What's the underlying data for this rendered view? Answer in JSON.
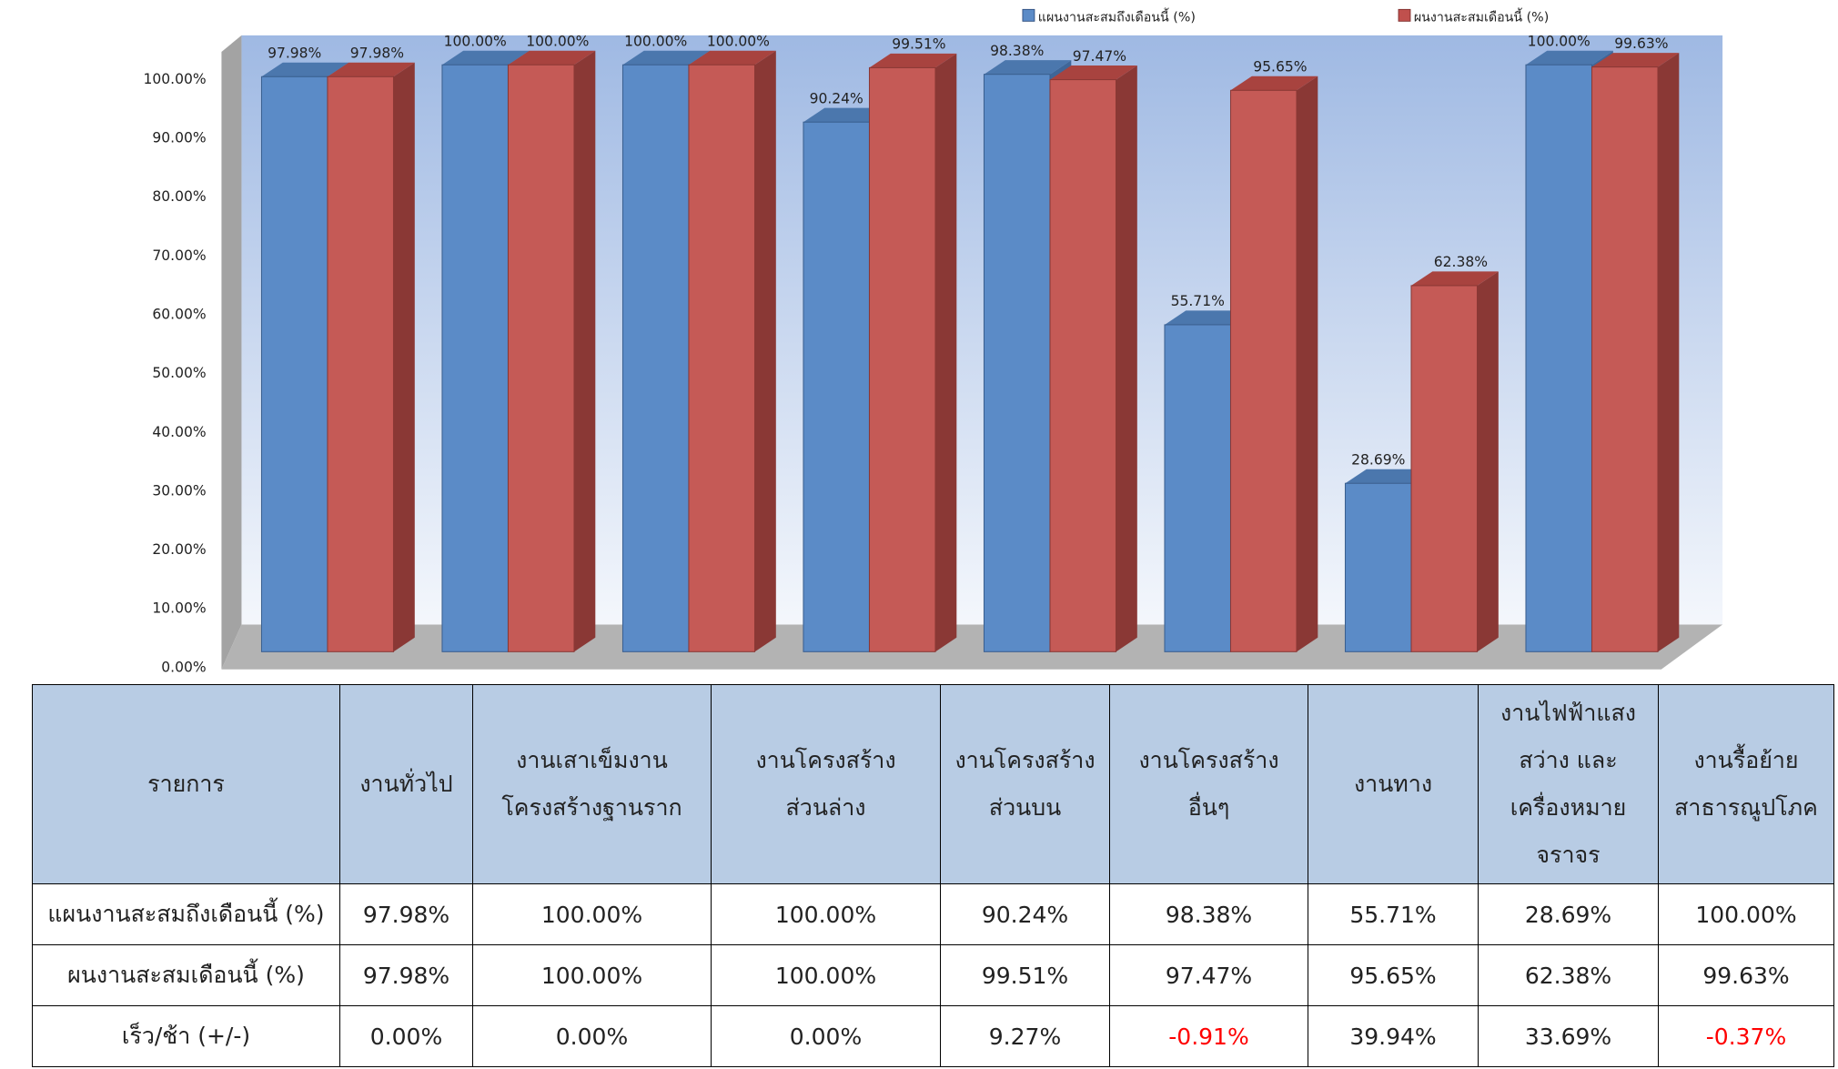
{
  "chart_data": {
    "type": "bar",
    "title": "",
    "xlabel": "",
    "ylabel": "",
    "ylim": [
      0,
      100
    ],
    "y_ticks": [
      "0.00%",
      "10.00%",
      "20.00%",
      "30.00%",
      "40.00%",
      "50.00%",
      "60.00%",
      "70.00%",
      "80.00%",
      "90.00%",
      "100.00%"
    ],
    "grid": false,
    "legend_position": "top",
    "categories": [
      "งานทั่วไป",
      "งานเสาเข็มงานโครงสร้างฐานราก",
      "งานโครงสร้างส่วนล่าง",
      "งานโครงสร้างส่วนบน",
      "งานโครงสร้างอื่นๆ",
      "งานทาง",
      "งานไฟฟ้าแสงสว่าง และเครื่องหมายจราจร",
      "งานรื้อย้ายสาธารณูปโภค"
    ],
    "series": [
      {
        "name": "แผนงานสะสมถึงเดือนนี้ (%)",
        "color": "#5B8BC7",
        "values": [
          97.98,
          100.0,
          100.0,
          90.24,
          98.38,
          55.71,
          28.69,
          100.0
        ],
        "labels": [
          "97.98%",
          "100.00%",
          "100.00%",
          "90.24%",
          "98.38%",
          "55.71%",
          "28.69%",
          "100.00%"
        ]
      },
      {
        "name": "ผนงานสะสมเดือนนี้ (%)",
        "color": "#C0504D",
        "values": [
          97.98,
          100.0,
          100.0,
          99.51,
          97.47,
          95.65,
          62.38,
          99.63
        ],
        "labels": [
          "97.98%",
          "100.00%",
          "100.00%",
          "99.51%",
          "97.47%",
          "95.65%",
          "62.38%",
          "99.63%"
        ]
      }
    ]
  },
  "table": {
    "header": [
      "รายการ",
      "งานทั่วไป",
      "งานเสาเข็มงาน\nโครงสร้างฐานราก",
      "งานโครงสร้าง\nส่วนล่าง",
      "งานโครงสร้าง\nส่วนบน",
      "งานโครงสร้าง\nอื่นๆ",
      "งานทาง",
      "งานไฟฟ้าแสง\nสว่าง และ\nเครื่องหมาย\nจราจร",
      "งานรื้อย้าย\nสาธารณูปโภค"
    ],
    "rows": [
      [
        "แผนงานสะสมถึงเดือนนี้ (%)",
        "97.98%",
        "100.00%",
        "100.00%",
        "90.24%",
        "98.38%",
        "55.71%",
        "28.69%",
        "100.00%"
      ],
      [
        "ผนงานสะสมเดือนนี้ (%)",
        "97.98%",
        "100.00%",
        "100.00%",
        "99.51%",
        "97.47%",
        "95.65%",
        "62.38%",
        "99.63%"
      ],
      [
        "เร็ว/ช้า (+/-)",
        "0.00%",
        "0.00%",
        "0.00%",
        "9.27%",
        "-0.91%",
        "39.94%",
        "33.69%",
        "-0.37%"
      ]
    ]
  }
}
